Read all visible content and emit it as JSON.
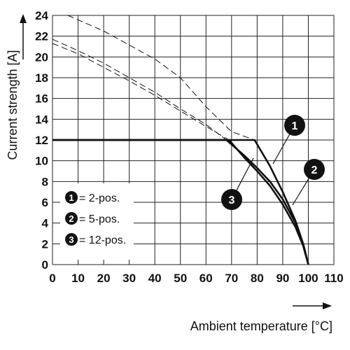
{
  "chart_data": {
    "type": "line",
    "xlabel": "Ambient temperature [°C]",
    "ylabel": "Current strength [A]",
    "xlim": [
      0,
      110
    ],
    "ylim": [
      0,
      24
    ],
    "x_ticks": [
      "0",
      "10",
      "20",
      "30",
      "40",
      "50",
      "60",
      "70",
      "80",
      "90",
      "100",
      "110"
    ],
    "y_ticks": [
      "0",
      "2",
      "4",
      "6",
      "8",
      "10",
      "12",
      "14",
      "16",
      "18",
      "20",
      "22",
      "24"
    ],
    "grid": true,
    "legend": [
      {
        "marker": "1",
        "label": "= 2-pos."
      },
      {
        "marker": "2",
        "label": "= 5-pos."
      },
      {
        "marker": "3",
        "label": "= 12-pos."
      }
    ],
    "series": [
      {
        "marker": "1",
        "style": "solid",
        "points": [
          [
            0,
            12
          ],
          [
            79,
            12
          ],
          [
            85,
            9.5
          ],
          [
            90,
            7
          ],
          [
            95,
            4.2
          ],
          [
            98,
            2
          ],
          [
            100,
            0
          ]
        ]
      },
      {
        "marker": "2",
        "style": "solid",
        "points": [
          [
            0,
            12
          ],
          [
            68,
            12
          ],
          [
            75,
            10.5
          ],
          [
            80,
            9.3
          ],
          [
            85,
            8
          ],
          [
            90,
            6.3
          ],
          [
            95,
            4
          ],
          [
            98,
            2
          ],
          [
            100,
            0
          ]
        ]
      },
      {
        "marker": "3",
        "style": "solid",
        "points": [
          [
            0,
            12
          ],
          [
            69,
            12
          ],
          [
            75,
            10.3
          ],
          [
            80,
            9
          ],
          [
            85,
            7.6
          ],
          [
            90,
            5.8
          ],
          [
            95,
            3.6
          ],
          [
            98,
            1.8
          ],
          [
            100,
            0
          ]
        ]
      },
      {
        "marker": "1",
        "style": "dashed",
        "points": [
          [
            6,
            24
          ],
          [
            20,
            22.5
          ],
          [
            40,
            19.8
          ],
          [
            50,
            18
          ],
          [
            60,
            15.2
          ],
          [
            70,
            12.8
          ],
          [
            79,
            12
          ]
        ]
      },
      {
        "marker": "2",
        "style": "dashed",
        "points": [
          [
            0,
            21.7
          ],
          [
            10,
            20.6
          ],
          [
            20,
            19.4
          ],
          [
            30,
            18
          ],
          [
            40,
            16.6
          ],
          [
            50,
            15
          ],
          [
            60,
            13.5
          ],
          [
            68,
            12
          ]
        ]
      },
      {
        "marker": "3",
        "style": "dashed",
        "points": [
          [
            0,
            21.3
          ],
          [
            10,
            20.3
          ],
          [
            20,
            19
          ],
          [
            30,
            17.7
          ],
          [
            40,
            16.3
          ],
          [
            50,
            14.8
          ],
          [
            60,
            13.3
          ],
          [
            69,
            12
          ]
        ]
      }
    ]
  }
}
